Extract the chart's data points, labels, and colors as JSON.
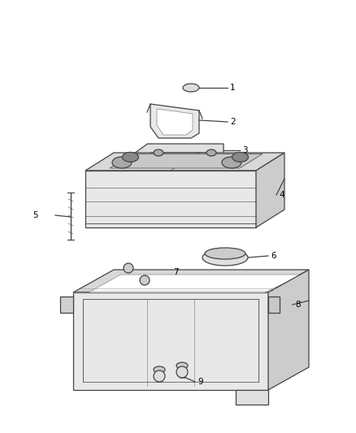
{
  "background_color": "#ffffff",
  "line_color": "#444444",
  "label_color": "#000000",
  "fig_width": 4.38,
  "fig_height": 5.33,
  "dpi": 100
}
